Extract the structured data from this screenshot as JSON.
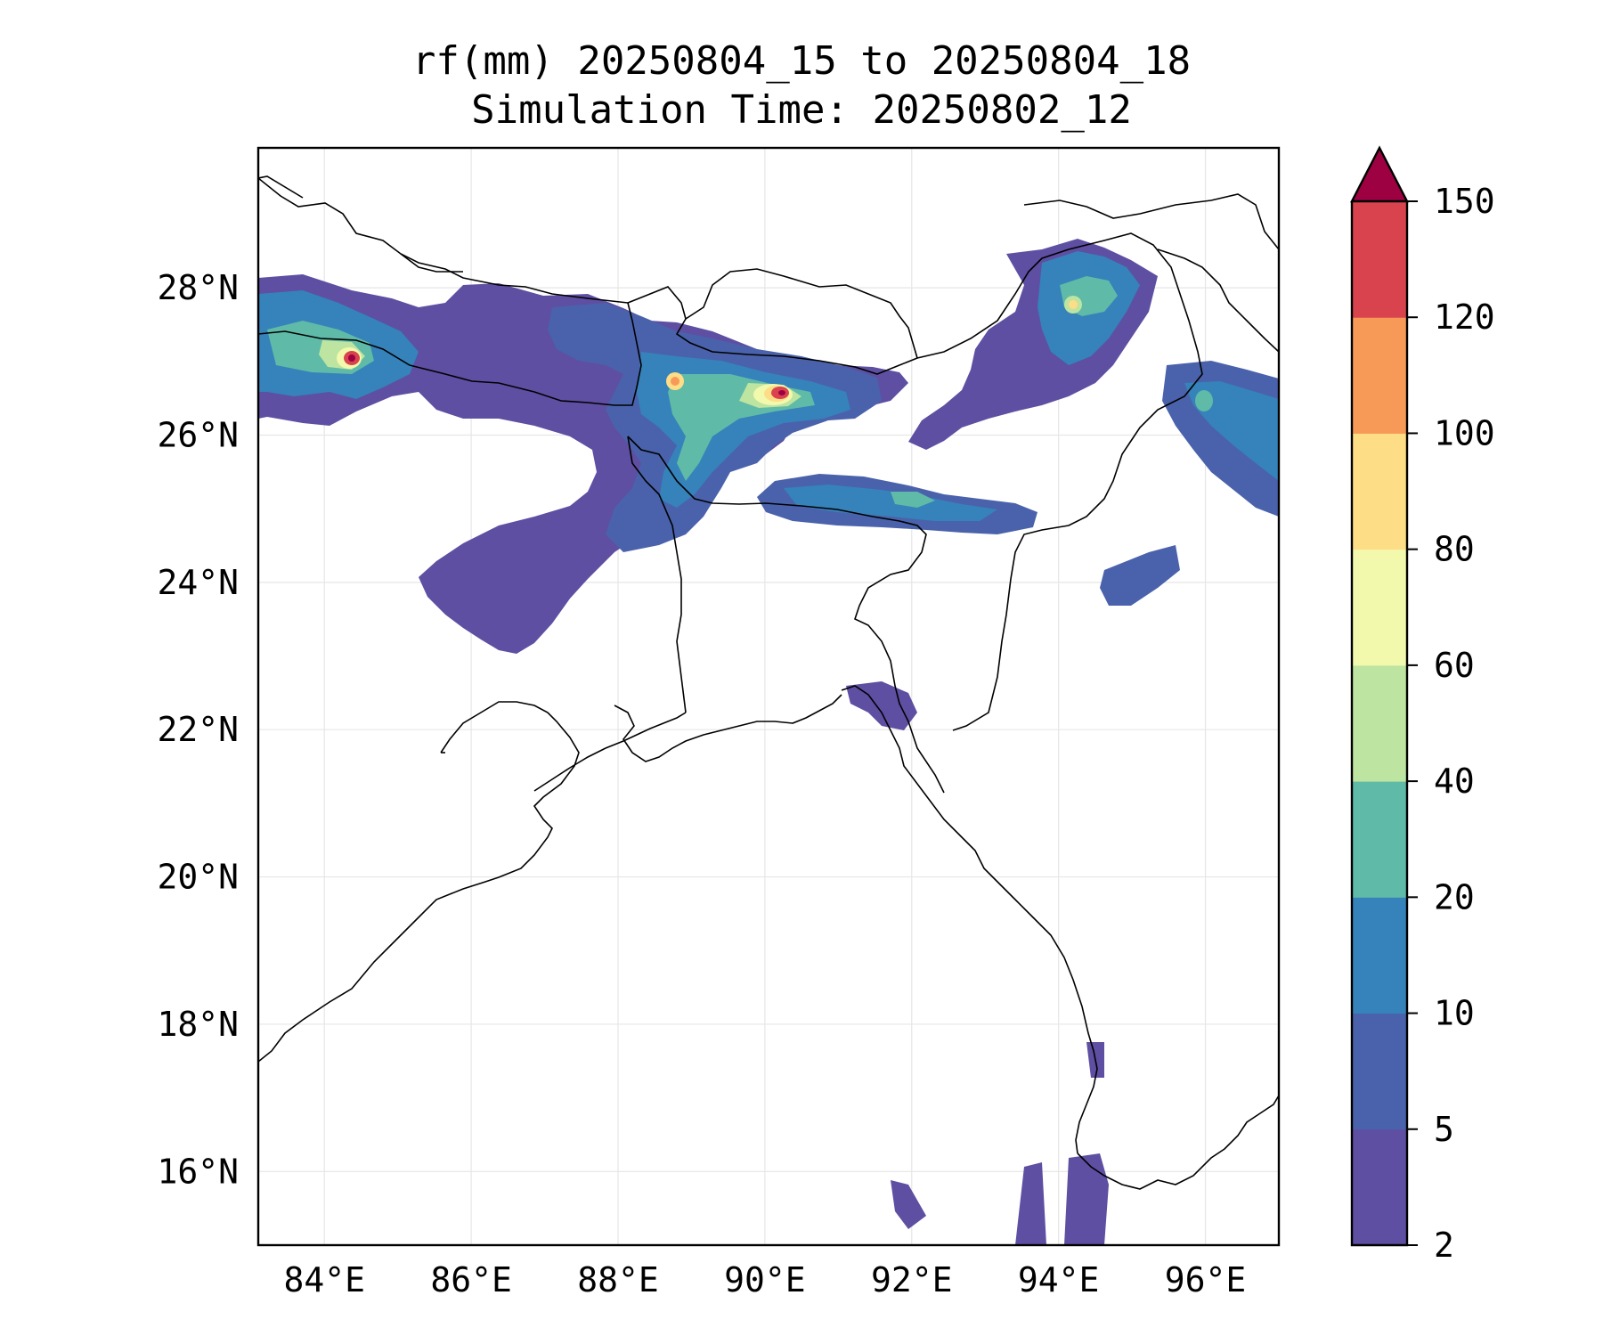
{
  "title": {
    "line1": "rf(mm) 20250804_15 to 20250804_18",
    "line2": "Simulation Time: 20250802_12"
  },
  "map": {
    "lon_range": [
      83.1,
      97.0
    ],
    "lat_range": [
      15.0,
      29.9
    ],
    "x_ticks": [
      "84°E",
      "86°E",
      "88°E",
      "90°E",
      "92°E",
      "94°E",
      "96°E"
    ],
    "y_ticks": [
      "16°N",
      "18°N",
      "20°N",
      "22°N",
      "24°N",
      "26°N",
      "28°N"
    ],
    "grid": true,
    "coastline_color": "#000000",
    "gridline_color": "#e6e6e6"
  },
  "colorbar": {
    "levels": [
      "2",
      "5",
      "10",
      "20",
      "40",
      "60",
      "80",
      "100",
      "120",
      "150"
    ],
    "colors": [
      "#5e4fa2",
      "#4a62ab",
      "#3682ba",
      "#5fbaa8",
      "#bde4a0",
      "#f2f9ad",
      "#fddd86",
      "#f89a57",
      "#d8434e",
      "#9e0142"
    ],
    "extend": "max"
  }
}
